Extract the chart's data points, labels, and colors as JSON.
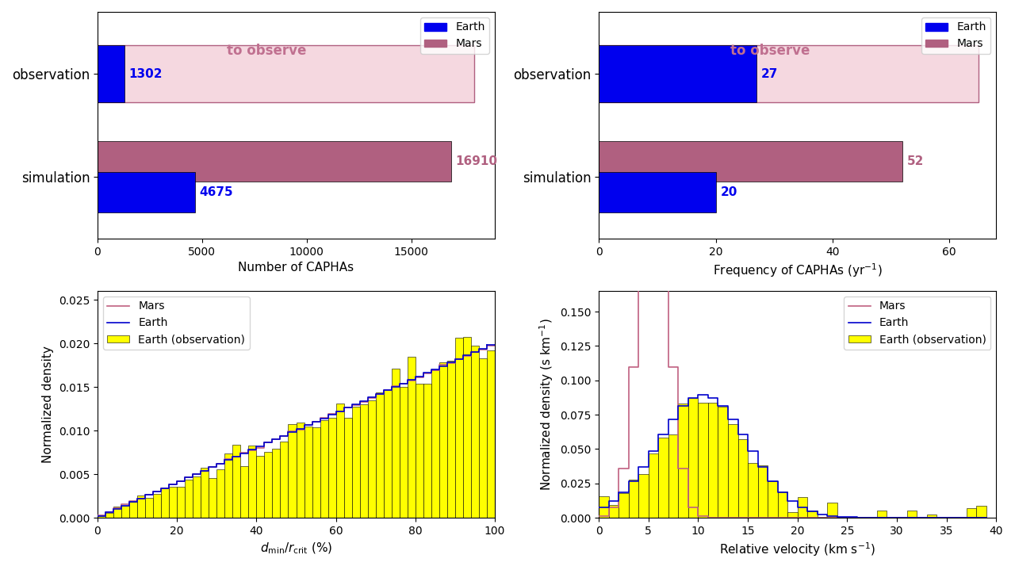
{
  "bar1": {
    "categories": [
      "observation",
      "simulation"
    ],
    "earth_values": [
      1302,
      4675
    ],
    "mars_obs_value": 18000,
    "mars_sim_value": 16910,
    "earth_color": "#0000ee",
    "mars_color": "#b06080",
    "mars_bg_color": "#f5d8e0",
    "xlabel": "Number of CAPHAs",
    "xlim": [
      0,
      19000
    ],
    "xticks": [
      0,
      5000,
      10000,
      15000
    ],
    "to_observe_text": "to observe",
    "to_observe_color": "#c07090"
  },
  "bar2": {
    "categories": [
      "observation",
      "simulation"
    ],
    "earth_values": [
      27,
      20
    ],
    "mars_obs_value": 65,
    "mars_sim_value": 52,
    "earth_color": "#0000ee",
    "mars_color": "#b06080",
    "mars_bg_color": "#f5d8e0",
    "xlabel": "Frequency of CAPHAs (yr$^{-1}$)",
    "xlim": [
      0,
      68
    ],
    "xticks": [
      0,
      20,
      40,
      60
    ],
    "to_observe_text": "to observe",
    "to_observe_color": "#c07090"
  },
  "hist1": {
    "xlabel": "$d_{\\mathrm{min}}/r_{\\mathrm{crit}}$ (%)",
    "ylabel": "Normalized density",
    "xlim": [
      0,
      100
    ],
    "ylim": [
      0,
      0.026
    ],
    "earth_color": "#0000cc",
    "mars_color": "#c06080",
    "obs_color": "#ffff00"
  },
  "hist2": {
    "xlabel": "Relative velocity (km s$^{-1}$)",
    "ylabel": "Normalized density (s km$^{-1}$)",
    "xlim": [
      0,
      40
    ],
    "ylim": [
      0,
      0.165
    ],
    "earth_color": "#0000cc",
    "mars_color": "#c06080",
    "obs_color": "#ffff00",
    "yticks": [
      0.0,
      0.025,
      0.05,
      0.075,
      0.1,
      0.125,
      0.15
    ]
  },
  "legend_earth": "Earth",
  "legend_mars": "Mars",
  "legend_obs": "Earth (observation)"
}
